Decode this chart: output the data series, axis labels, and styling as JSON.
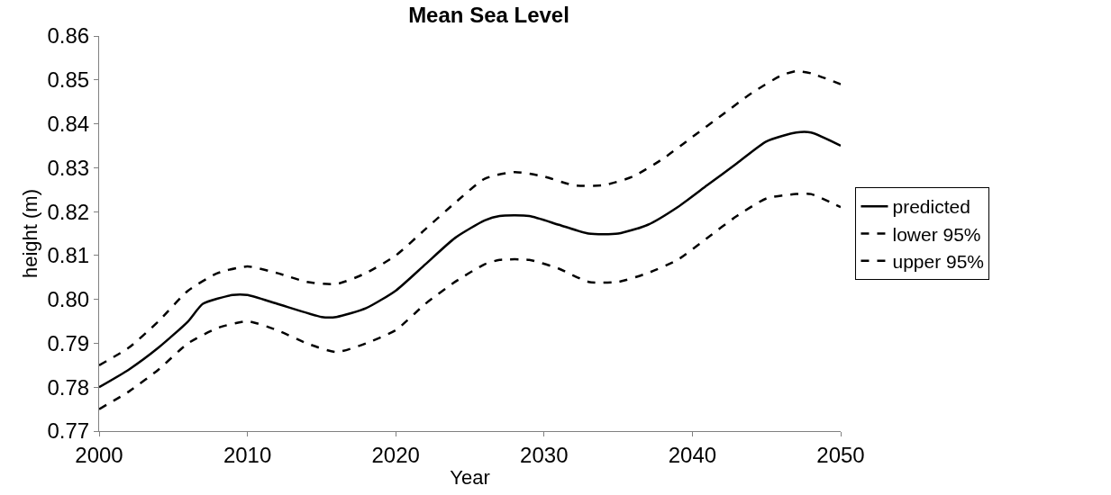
{
  "chart_data": {
    "type": "line",
    "title": "Mean Sea Level",
    "xlabel": "Year",
    "ylabel": "height (m)",
    "xlim": [
      2000,
      2050
    ],
    "xticks": [
      2000,
      2010,
      2020,
      2030,
      2040,
      2050
    ],
    "ylim": [
      0.77,
      0.86
    ],
    "yticks": [
      {
        "value": 0.77,
        "label": "0.77"
      },
      {
        "value": 0.78,
        "label": "0.78"
      },
      {
        "value": 0.79,
        "label": "0.79"
      },
      {
        "value": 0.8,
        "label": "0.80"
      },
      {
        "value": 0.81,
        "label": "0.81"
      },
      {
        "value": 0.82,
        "label": "0.82"
      },
      {
        "value": 0.83,
        "label": "0.83"
      },
      {
        "value": 0.84,
        "label": "0.84"
      },
      {
        "value": 0.85,
        "label": "0.85"
      },
      {
        "value": 0.86,
        "label": "0.86"
      }
    ],
    "legend": "right",
    "marker": "none",
    "series": [
      {
        "name": "predicted",
        "color": "#000000",
        "line_style": "solid",
        "x": [
          2000,
          2002,
          2004,
          2006,
          2007,
          2009,
          2010,
          2012,
          2015,
          2016,
          2018,
          2020,
          2022,
          2024,
          2026,
          2027,
          2029,
          2031,
          2033,
          2035,
          2037,
          2039,
          2041,
          2043,
          2045,
          2047,
          2048,
          2050
        ],
        "values": [
          0.78,
          0.784,
          0.789,
          0.795,
          0.799,
          0.801,
          0.801,
          0.799,
          0.796,
          0.796,
          0.798,
          0.802,
          0.808,
          0.814,
          0.818,
          0.819,
          0.819,
          0.817,
          0.815,
          0.815,
          0.817,
          0.821,
          0.826,
          0.831,
          0.836,
          0.838,
          0.838,
          0.835
        ]
      },
      {
        "name": "lower 95%",
        "color": "#000000",
        "line_style": "dashed",
        "x": [
          2000,
          2002,
          2004,
          2006,
          2008,
          2010,
          2012,
          2014,
          2016,
          2018,
          2020,
          2022,
          2024,
          2026,
          2027,
          2029,
          2031,
          2033,
          2035,
          2037,
          2039,
          2041,
          2043,
          2045,
          2047,
          2048,
          2050
        ],
        "values": [
          0.775,
          0.779,
          0.784,
          0.79,
          0.7935,
          0.795,
          0.793,
          0.79,
          0.788,
          0.79,
          0.793,
          0.799,
          0.804,
          0.808,
          0.809,
          0.809,
          0.807,
          0.804,
          0.804,
          0.806,
          0.809,
          0.814,
          0.819,
          0.823,
          0.824,
          0.824,
          0.821
        ]
      },
      {
        "name": "upper 95%",
        "color": "#000000",
        "line_style": "dashed",
        "x": [
          2000,
          2002,
          2004,
          2006,
          2008,
          2010,
          2012,
          2014,
          2016,
          2018,
          2020,
          2022,
          2024,
          2026,
          2028,
          2030,
          2032,
          2034,
          2036,
          2038,
          2040,
          2042,
          2044,
          2046,
          2047,
          2048,
          2050
        ],
        "values": [
          0.785,
          0.789,
          0.795,
          0.802,
          0.806,
          0.8075,
          0.806,
          0.804,
          0.8035,
          0.806,
          0.81,
          0.816,
          0.822,
          0.8275,
          0.829,
          0.828,
          0.826,
          0.826,
          0.828,
          0.832,
          0.837,
          0.842,
          0.847,
          0.851,
          0.852,
          0.8515,
          0.849
        ]
      }
    ]
  }
}
